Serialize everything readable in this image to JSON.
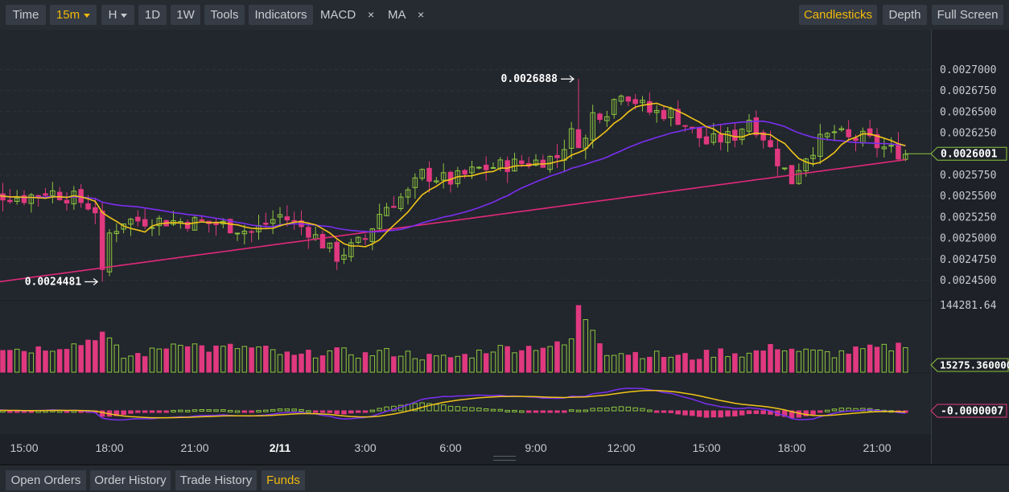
{
  "toolbar": {
    "time": "Time",
    "interval": "15m",
    "hour": "H",
    "day": "1D",
    "week": "1W",
    "tools": "Tools",
    "indicators": "Indicators",
    "macd": "MACD",
    "ma": "MA",
    "close_symbol": "×",
    "candlesticks": "Candlesticks",
    "depth": "Depth",
    "fullscreen": "Full Screen"
  },
  "bottom_tabs": [
    "Open Orders",
    "Order History",
    "Trade History",
    "Funds"
  ],
  "colors": {
    "bg": "#1e2228",
    "up": "#8ec63f",
    "down": "#e0397f",
    "ma_fast": "#f0c419",
    "ma_mid": "#7a2ff0",
    "ma_slow": "#e0297a",
    "accent": "#f0b90b"
  },
  "chart_data": {
    "type": "candlestick",
    "x_tick_labels": [
      "15:00",
      "18:00",
      "21:00",
      "2/11",
      "3:00",
      "6:00",
      "9:00",
      "12:00",
      "15:00",
      "18:00",
      "21:00"
    ],
    "x_tick_hours": [
      15,
      18,
      21,
      24,
      27,
      30,
      33,
      36,
      39,
      42,
      45
    ],
    "price_axis": {
      "labels": [
        "0.0027000",
        "0.0026750",
        "0.0026500",
        "0.0026250",
        "0.0026000",
        "0.0025750",
        "0.0025500",
        "0.0025250",
        "0.0025000",
        "0.0024750",
        "0.0024500"
      ],
      "range": [
        0.00244,
        0.002688
      ]
    },
    "current_price": "0.0026001",
    "high_marker": "0.0026888",
    "low_marker": "0.0024481",
    "volume_axis": {
      "max_label": "144281.64",
      "current": "15275.360000"
    },
    "macd_current": "-0.0000007",
    "close_anchors": [
      [
        13.0,
        0.002547
      ],
      [
        14.0,
        0.002552
      ],
      [
        15.0,
        0.002548
      ],
      [
        15.8,
        0.002556
      ],
      [
        16.8,
        0.002547
      ],
      [
        17.5,
        0.002534
      ],
      [
        17.75,
        0.002455
      ],
      [
        18.0,
        0.002505
      ],
      [
        18.5,
        0.002521
      ],
      [
        19.5,
        0.002521
      ],
      [
        21.0,
        0.002519
      ],
      [
        22.0,
        0.002516
      ],
      [
        23.0,
        0.002507
      ],
      [
        24.0,
        0.002527
      ],
      [
        25.0,
        0.002509
      ],
      [
        26.0,
        0.002478
      ],
      [
        27.0,
        0.002499
      ],
      [
        27.6,
        0.002535
      ],
      [
        28.5,
        0.002553
      ],
      [
        29.0,
        0.002576
      ],
      [
        30.0,
        0.002568
      ],
      [
        31.0,
        0.002582
      ],
      [
        32.0,
        0.002587
      ],
      [
        33.0,
        0.002591
      ],
      [
        33.8,
        0.002597
      ],
      [
        34.2,
        0.002625
      ],
      [
        34.7,
        0.00261
      ],
      [
        35.0,
        0.002647
      ],
      [
        35.5,
        0.002652
      ],
      [
        36.0,
        0.002676
      ],
      [
        36.5,
        0.002663
      ],
      [
        37.0,
        0.00265
      ],
      [
        37.8,
        0.002648
      ],
      [
        38.5,
        0.002627
      ],
      [
        39.0,
        0.002613
      ],
      [
        40.0,
        0.002622
      ],
      [
        40.5,
        0.002642
      ],
      [
        41.0,
        0.002621
      ],
      [
        41.4,
        0.002597
      ],
      [
        41.8,
        0.002578
      ],
      [
        42.0,
        0.002568
      ],
      [
        42.4,
        0.002595
      ],
      [
        43.0,
        0.002615
      ],
      [
        43.5,
        0.002626
      ],
      [
        44.0,
        0.002617
      ],
      [
        44.6,
        0.002619
      ],
      [
        45.0,
        0.00261
      ],
      [
        45.5,
        0.002604
      ],
      [
        46.0,
        0.0026
      ]
    ],
    "volume_anchors": [
      [
        13.0,
        0.35
      ],
      [
        14.0,
        0.38
      ],
      [
        15.0,
        0.33
      ],
      [
        16.0,
        0.37
      ],
      [
        17.0,
        0.42
      ],
      [
        17.75,
        0.58
      ],
      [
        18.5,
        0.22
      ],
      [
        19.5,
        0.3
      ],
      [
        20.5,
        0.46
      ],
      [
        21.5,
        0.34
      ],
      [
        22.5,
        0.37
      ],
      [
        23.5,
        0.33
      ],
      [
        24.5,
        0.22
      ],
      [
        25.5,
        0.3
      ],
      [
        26.5,
        0.29
      ],
      [
        27.0,
        0.25
      ],
      [
        27.5,
        0.3
      ],
      [
        28.5,
        0.27
      ],
      [
        29.5,
        0.2
      ],
      [
        30.5,
        0.24
      ],
      [
        31.5,
        0.35
      ],
      [
        32.5,
        0.36
      ],
      [
        33.5,
        0.39
      ],
      [
        34.2,
        0.4
      ],
      [
        34.5,
        0.95
      ],
      [
        35.0,
        0.65
      ],
      [
        35.5,
        0.3
      ],
      [
        36.5,
        0.28
      ],
      [
        37.5,
        0.24
      ],
      [
        38.5,
        0.22
      ],
      [
        39.5,
        0.3
      ],
      [
        40.5,
        0.27
      ],
      [
        41.5,
        0.38
      ],
      [
        42.5,
        0.3
      ],
      [
        43.5,
        0.27
      ],
      [
        44.5,
        0.33
      ],
      [
        45.5,
        0.36
      ],
      [
        46.0,
        0.43
      ]
    ]
  }
}
